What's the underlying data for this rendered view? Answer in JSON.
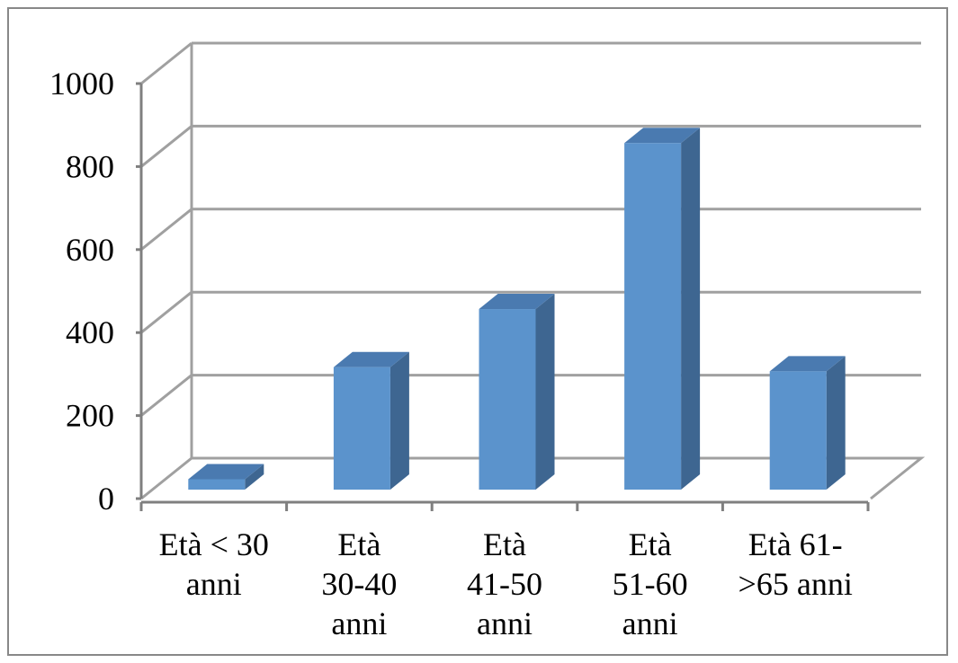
{
  "chart_data": {
    "type": "bar",
    "style": "3d-column",
    "categories": [
      "Età < 30 anni",
      "Età 30-40 anni",
      "Età 41-50 anni",
      "Età 51-60 anni",
      "Età 61- >65 anni"
    ],
    "category_label_lines": [
      [
        "Età < 30",
        "anni"
      ],
      [
        "Età",
        "30-40",
        "anni"
      ],
      [
        "Età",
        "41-50",
        "anni"
      ],
      [
        "Età",
        "51-60",
        "anni"
      ],
      [
        "Età 61-",
        ">65 anni"
      ]
    ],
    "values": [
      25,
      295,
      435,
      835,
      285
    ],
    "ylim": [
      0,
      1000
    ],
    "yticks": [
      "0",
      "200",
      "400",
      "600",
      "800",
      "1000"
    ],
    "grid": true,
    "legend": "none",
    "colors": {
      "bar_front": "#5b93cc",
      "bar_side": "#3e6691",
      "bar_top": "#4a7ab0",
      "grid": "#a0a0a0"
    }
  }
}
